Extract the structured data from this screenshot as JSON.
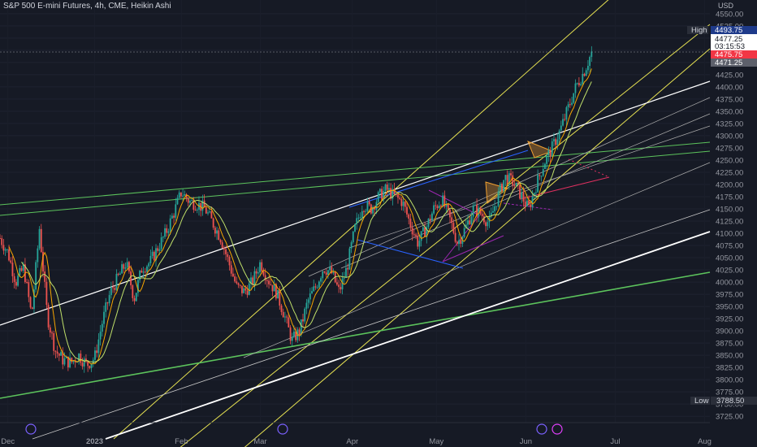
{
  "header": {
    "title": "S&P 500 E-mini Futures, 4h, CME, Heikin Ashi",
    "currency": "USD"
  },
  "price_tags": {
    "high_label": "High",
    "high_value": "4493.75",
    "last_value": "4477.25",
    "countdown": "03:15:53",
    "red_value": "4475.75",
    "grey_value": "4471.25",
    "low_label": "Low",
    "low_value": "3788.50"
  },
  "colors": {
    "background": "#161a25",
    "up_candle": "#26a69a",
    "down_candle": "#ef5350",
    "trend_yellow": "#e8e352",
    "trend_green": "#5cc35c",
    "trend_white": "#ffffff",
    "trend_blue": "#2962ff",
    "trend_purple": "#9c27b0",
    "pattern_orange": "#f0a030"
  },
  "chart_data": {
    "type": "candlestick",
    "style": "Heikin Ashi",
    "timeframe": "4h",
    "symbol": "S&P 500 E-mini Futures",
    "x_ticks": [
      "Dec",
      "2023",
      "Feb",
      "Mar",
      "Apr",
      "May",
      "Jun",
      "Jul",
      "Aug"
    ],
    "y_ticks": [
      3725,
      3750,
      3775,
      3800,
      3825,
      3850,
      3875,
      3900,
      3925,
      3950,
      3975,
      4000,
      4025,
      4050,
      4075,
      4100,
      4125,
      4150,
      4175,
      4200,
      4225,
      4250,
      4275,
      4300,
      4325,
      4350,
      4375,
      4400,
      4425,
      4450,
      4475,
      4500,
      4525,
      4550
    ],
    "y_tick_labels": [
      "3725.00",
      "3750.00",
      "3775.00",
      "3800.00",
      "3825.00",
      "3850.00",
      "3875.00",
      "3900.00",
      "3925.00",
      "3950.00",
      "3975.00",
      "4000.00",
      "4025.00",
      "4050.00",
      "4075.00",
      "4100.00",
      "4125.00",
      "4150.00",
      "4175.00",
      "4200.00",
      "4225.00",
      "4250.00",
      "4275.00",
      "4300.00",
      "4325.00",
      "4350.00",
      "4375.00",
      "4400.00",
      "4425.00",
      "4450.00",
      "4475.00",
      "4500.00",
      "4525.00",
      "4550.00"
    ],
    "ylim": [
      3712,
      4578
    ],
    "x_domain": [
      0,
      270
    ],
    "x_tick_positions": [
      3,
      36,
      69,
      99,
      134,
      166,
      200,
      234,
      268
    ],
    "price_path": [
      [
        0,
        4090
      ],
      [
        3,
        4060
      ],
      [
        6,
        4000
      ],
      [
        9,
        4030
      ],
      [
        12,
        3930
      ],
      [
        15,
        4110
      ],
      [
        18,
        3930
      ],
      [
        21,
        3860
      ],
      [
        24,
        3840
      ],
      [
        27,
        3835
      ],
      [
        30,
        3850
      ],
      [
        33,
        3830
      ],
      [
        36,
        3845
      ],
      [
        39,
        3920
      ],
      [
        42,
        3980
      ],
      [
        45,
        4010
      ],
      [
        48,
        4040
      ],
      [
        51,
        3965
      ],
      [
        54,
        4030
      ],
      [
        57,
        4040
      ],
      [
        60,
        4070
      ],
      [
        63,
        4100
      ],
      [
        66,
        4140
      ],
      [
        69,
        4185
      ],
      [
        72,
        4165
      ],
      [
        75,
        4160
      ],
      [
        78,
        4150
      ],
      [
        81,
        4120
      ],
      [
        84,
        4090
      ],
      [
        87,
        4040
      ],
      [
        90,
        3990
      ],
      [
        93,
        3980
      ],
      [
        96,
        4000
      ],
      [
        99,
        4040
      ],
      [
        102,
        4005
      ],
      [
        105,
        3980
      ],
      [
        108,
        3935
      ],
      [
        111,
        3880
      ],
      [
        114,
        3900
      ],
      [
        117,
        3960
      ],
      [
        120,
        3990
      ],
      [
        123,
        4030
      ],
      [
        126,
        4020
      ],
      [
        129,
        3980
      ],
      [
        132,
        4030
      ],
      [
        135,
        4110
      ],
      [
        138,
        4160
      ],
      [
        141,
        4150
      ],
      [
        144,
        4175
      ],
      [
        147,
        4190
      ],
      [
        150,
        4175
      ],
      [
        153,
        4165
      ],
      [
        156,
        4120
      ],
      [
        159,
        4080
      ],
      [
        162,
        4110
      ],
      [
        165,
        4150
      ],
      [
        168,
        4170
      ],
      [
        171,
        4130
      ],
      [
        174,
        4080
      ],
      [
        177,
        4110
      ],
      [
        180,
        4150
      ],
      [
        183,
        4140
      ],
      [
        186,
        4120
      ],
      [
        189,
        4170
      ],
      [
        192,
        4215
      ],
      [
        195,
        4205
      ],
      [
        198,
        4180
      ],
      [
        201,
        4150
      ],
      [
        204,
        4200
      ],
      [
        207,
        4245
      ],
      [
        210,
        4275
      ],
      [
        213,
        4310
      ],
      [
        216,
        4355
      ],
      [
        219,
        4400
      ],
      [
        222,
        4430
      ],
      [
        225,
        4470
      ]
    ],
    "drawings": {
      "yellow_parallel_channel_lines": 3,
      "green_trendlines": 3,
      "white_trendlines": 3,
      "grey_trendlines": 5,
      "blue_trendlines": 2,
      "purple_pattern": 1,
      "orange_patterns": 2
    }
  }
}
